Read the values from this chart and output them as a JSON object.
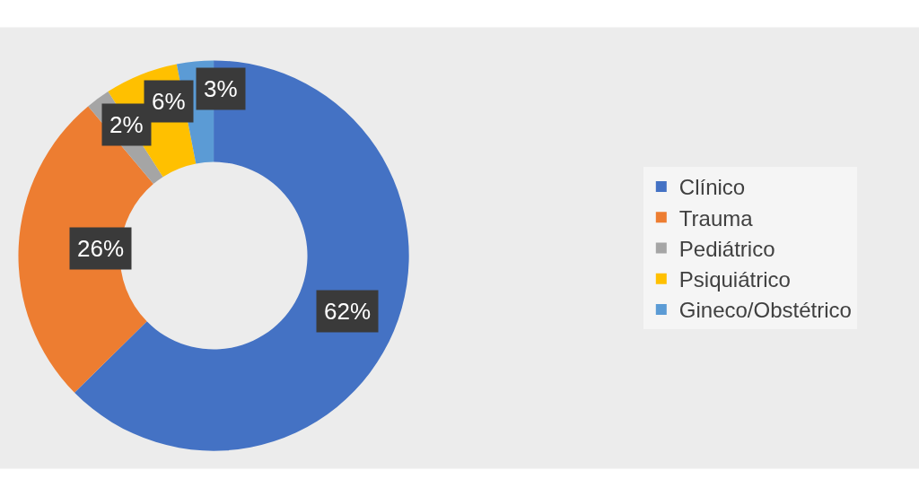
{
  "chart_data": {
    "type": "donut",
    "categories": [
      "Clínico",
      "Trauma",
      "Pediátrico",
      "Psiquiátrico",
      "Gineco/Obstétrico"
    ],
    "values": [
      62,
      26,
      2,
      6,
      3
    ],
    "colors": [
      "#4472c4",
      "#ed7d31",
      "#a5a5a5",
      "#ffc000",
      "#5b9bd5"
    ],
    "value_labels": [
      "62%",
      "26%",
      "2%",
      "6%",
      "3%"
    ],
    "legend": "right"
  }
}
